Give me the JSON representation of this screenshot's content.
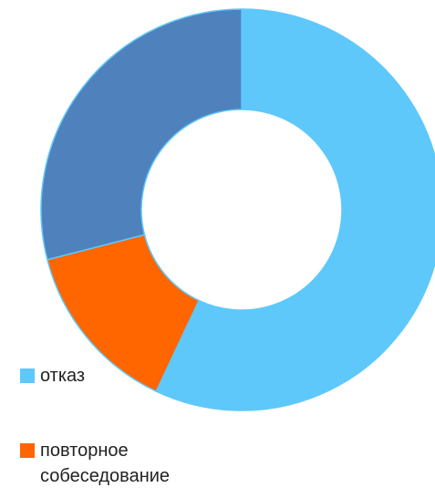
{
  "chart_data": {
    "type": "donut",
    "categories": [
      "отказ",
      "повторное собеседование",
      null
    ],
    "values": [
      57,
      14,
      29
    ],
    "colors": [
      "#5ec8fb",
      "#ff6600",
      "#4f81bd"
    ]
  }
}
